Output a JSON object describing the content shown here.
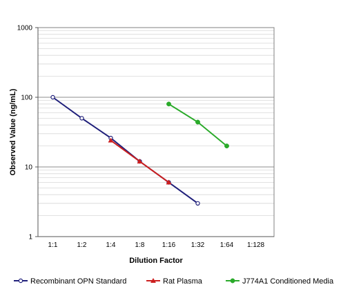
{
  "chart_data": {
    "type": "line",
    "title": "",
    "xlabel": "Dilution Factor",
    "ylabel": "Observed Value (ng/mL)",
    "yscale": "log",
    "ylim": [
      1,
      1000
    ],
    "grid": true,
    "legend_position": "bottom",
    "categories": [
      "1:1",
      "1:2",
      "1:4",
      "1:8",
      "1:16",
      "1:32",
      "1:64",
      "1:128"
    ],
    "y_ticks": [
      "1",
      "10",
      "100",
      "1000"
    ],
    "series": [
      {
        "name": "Recombinant OPN Standard",
        "color": "#1f1f7a",
        "marker": "circle-open",
        "values": [
          100,
          50,
          26,
          12,
          6,
          3,
          null,
          null
        ]
      },
      {
        "name": "Rat Plasma",
        "color": "#cc1f1f",
        "marker": "triangle",
        "values": [
          null,
          null,
          24,
          12,
          6,
          null,
          null,
          null
        ]
      },
      {
        "name": "J774A1 Conditioned Media",
        "color": "#2aaa2a",
        "marker": "circle",
        "values": [
          null,
          null,
          null,
          null,
          80,
          44,
          20,
          null
        ]
      }
    ]
  }
}
